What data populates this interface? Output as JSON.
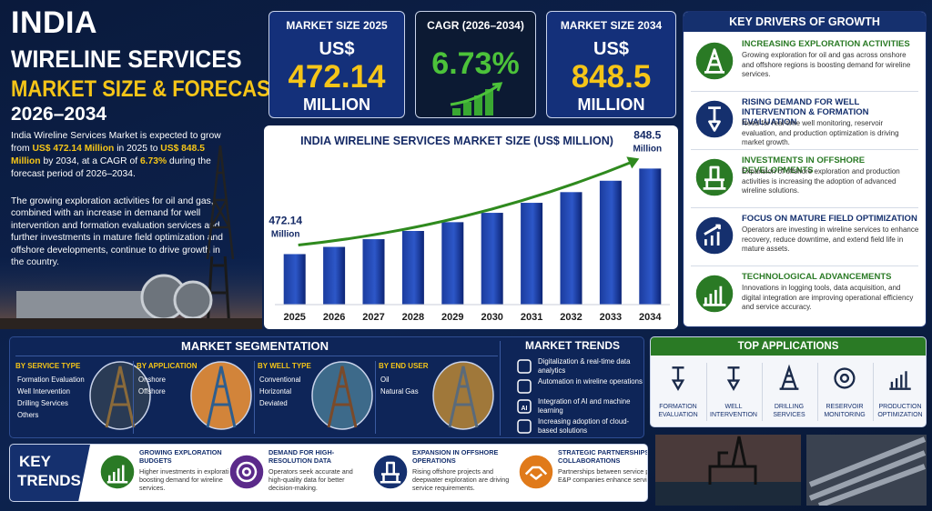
{
  "header": {
    "title_line1": "INDIA",
    "title_line2": "WIRELINE SERVICES",
    "subtitle": "MARKET SIZE & FORECAST",
    "years": "2026–2034"
  },
  "intro": {
    "paragraph1": [
      "India Wireline Services Market is expected to grow from ",
      "US$ 472.14 Million",
      " in 2025 to ",
      "US$ 848.5 Million",
      " by 2034, at a CAGR of ",
      "6.73%",
      " during the forecast period of 2026–2034."
    ],
    "paragraph2": "The growing exploration activities for oil and gas, combined with an increase in demand for well intervention and formation evaluation services and further investments in mature field optimization and offshore developments, continue to drive growth in the country."
  },
  "kpis": [
    {
      "label": "MARKET SIZE 2025",
      "prefix": "US$",
      "value": "472.14",
      "unit": "MILLION"
    },
    {
      "label": "CAGR (2026–2034)",
      "value": "6.73%"
    },
    {
      "label": "MARKET SIZE 2034",
      "prefix": "US$",
      "value": "848.5",
      "unit": "MILLION"
    }
  ],
  "chart_data": {
    "type": "bar",
    "title": "INDIA WIRELINE SERVICES MARKET SIZE (US$ MILLION)",
    "categories": [
      "2025",
      "2026",
      "2027",
      "2028",
      "2029",
      "2030",
      "2031",
      "2032",
      "2033",
      "2034"
    ],
    "values": [
      472.14,
      503.9,
      537.8,
      574.0,
      612.6,
      653.8,
      697.8,
      744.8,
      794.9,
      848.5
    ],
    "label_unit": "Million",
    "color": "#1b3c9e",
    "ylim": [
      250,
      850
    ],
    "grid": false
  },
  "drivers": {
    "title": "KEY DRIVERS OF GROWTH",
    "items": [
      {
        "title": "INCREASING EXPLORATION ACTIVITIES",
        "text": "Growing exploration for oil and gas across onshore and offshore regions is boosting demand for wireline services."
      },
      {
        "title": "RISING DEMAND FOR WELL INTERVENTION & FORMATION EVALUATION",
        "text": "Need for real-time well monitoring, reservoir evaluation, and production optimization is driving market growth."
      },
      {
        "title": "INVESTMENTS IN OFFSHORE DEVELOPMENTS",
        "text": "Expansion of offshore exploration and production activities is increasing the adoption of advanced wireline solutions."
      },
      {
        "title": "FOCUS ON MATURE FIELD OPTIMIZATION",
        "text": "Operators are investing in wireline services to enhance recovery, reduce downtime, and extend field life in mature assets."
      },
      {
        "title": "TECHNOLOGICAL ADVANCEMENTS",
        "text": "Innovations in logging tools, data acquisition, and digital integration are improving operational efficiency and service accuracy."
      }
    ]
  },
  "segmentation": {
    "title": "MARKET SEGMENTATION",
    "groups": [
      {
        "title": "BY SERVICE TYPE",
        "items": [
          "Formation Evaluation",
          "Well Intervention",
          "Drilling Services",
          "Others"
        ]
      },
      {
        "title": "BY APPLICATION",
        "items": [
          "Onshore",
          "Offshore"
        ]
      },
      {
        "title": "BY WELL TYPE",
        "items": [
          "Conventional",
          "Horizontal",
          "Deviated"
        ]
      },
      {
        "title": "BY END USER",
        "items": [
          "Oil",
          "Natural Gas"
        ]
      }
    ]
  },
  "market_trends": {
    "title": "MARKET TRENDS",
    "items": [
      {
        "text": "Digitalization & real-time data analytics"
      },
      {
        "text": "Automation in wireline operations"
      },
      {
        "icon": "AI",
        "text": "Integration of AI and machine learning"
      },
      {
        "text": "Increasing adoption of cloud-based solutions"
      }
    ]
  },
  "top_applications": {
    "title": "TOP APPLICATIONS",
    "items": [
      "FORMATION EVALUATION",
      "WELL INTERVENTION",
      "DRILLING SERVICES",
      "RESERVOIR MONITORING",
      "PRODUCTION OPTIMIZATION"
    ]
  },
  "key_trends": {
    "title_line1": "KEY",
    "title_line2": "TRENDS",
    "items": [
      {
        "title": "GROWING EXPLORATION BUDGETS",
        "text": "Higher investments in exploration boosting demand for wireline services."
      },
      {
        "title": "DEMAND FOR HIGH-RESOLUTION DATA",
        "text": "Operators seek accurate and high-quality data for better decision-making."
      },
      {
        "title": "EXPANSION IN OFFSHORE OPERATIONS",
        "text": "Rising offshore projects and deepwater exploration are driving service requirements."
      },
      {
        "title": "STRATEGIC PARTNERSHIPS & COLLABORATIONS",
        "text": "Partnerships between service providers and E&P companies enhance service delivery."
      }
    ]
  }
}
